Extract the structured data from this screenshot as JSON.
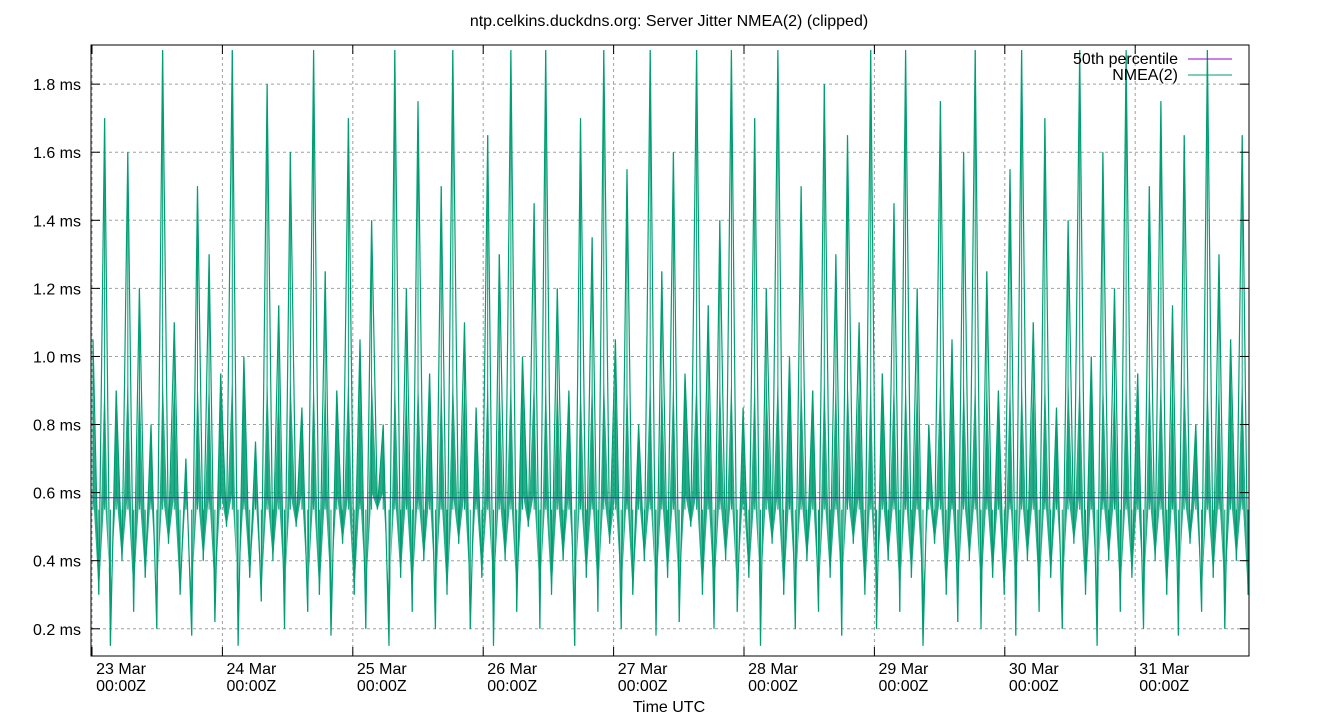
{
  "chart_data": {
    "type": "line",
    "title": "ntp.celkins.duckdns.org: Server Jitter NMEA(2) (clipped)",
    "xlabel": "Time UTC",
    "ylabel": "",
    "x_range": [
      "23 Mar 00:00Z",
      "31 Mar 21:00Z"
    ],
    "ylim": [
      0.12,
      1.915
    ],
    "grid": true,
    "legend_position": "top-right",
    "x_ticks": [
      {
        "line1": "23 Mar",
        "line2": "00:00Z"
      },
      {
        "line1": "24 Mar",
        "line2": "00:00Z"
      },
      {
        "line1": "25 Mar",
        "line2": "00:00Z"
      },
      {
        "line1": "26 Mar",
        "line2": "00:00Z"
      },
      {
        "line1": "27 Mar",
        "line2": "00:00Z"
      },
      {
        "line1": "28 Mar",
        "line2": "00:00Z"
      },
      {
        "line1": "29 Mar",
        "line2": "00:00Z"
      },
      {
        "line1": "30 Mar",
        "line2": "00:00Z"
      },
      {
        "line1": "31 Mar",
        "line2": "00:00Z"
      }
    ],
    "y_ticks": [
      {
        "value": 0.2,
        "label": "0.2 ms"
      },
      {
        "value": 0.4,
        "label": "0.4 ms"
      },
      {
        "value": 0.6,
        "label": "0.6 ms"
      },
      {
        "value": 0.8,
        "label": "0.8 ms"
      },
      {
        "value": 1.0,
        "label": "1.0 ms"
      },
      {
        "value": 1.2,
        "label": "1.2 ms"
      },
      {
        "value": 1.4,
        "label": "1.4 ms"
      },
      {
        "value": 1.6,
        "label": "1.6 ms"
      },
      {
        "value": 1.8,
        "label": "1.8 ms"
      }
    ],
    "series": [
      {
        "name": "50th percentile",
        "color": "#9400d3",
        "values": [
          0.585
        ]
      },
      {
        "name": "NMEA(2)",
        "color": "#009e73",
        "values": [
          1.05,
          0.3,
          1.7,
          0.15,
          0.9,
          0.4,
          1.6,
          0.25,
          1.2,
          0.35,
          0.8,
          0.2,
          1.9,
          0.45,
          1.1,
          0.3,
          0.7,
          0.18,
          1.5,
          0.4,
          1.3,
          0.22,
          0.95,
          0.5,
          1.9,
          0.15,
          1.0,
          0.35,
          0.75,
          0.28,
          1.8,
          0.4,
          1.15,
          0.2,
          1.6,
          0.5,
          0.85,
          0.25,
          1.9,
          0.3,
          1.25,
          0.18,
          0.9,
          0.45,
          1.7,
          0.3,
          1.05,
          0.2,
          1.4,
          0.55,
          0.8,
          0.15,
          1.9,
          0.35,
          1.2,
          0.25,
          1.75,
          0.4,
          0.95,
          0.2,
          1.5,
          0.3,
          1.9,
          0.45,
          1.1,
          0.2,
          0.85,
          0.35,
          1.65,
          0.15,
          1.3,
          0.4,
          1.9,
          0.25,
          1.0,
          0.5,
          1.45,
          0.2,
          1.9,
          0.3,
          1.2,
          0.4,
          0.9,
          0.15,
          1.7,
          0.35,
          1.35,
          0.25,
          1.9,
          0.45,
          1.05,
          0.2,
          1.55,
          0.3,
          0.8,
          0.4,
          1.9,
          0.18,
          1.25,
          0.35,
          1.6,
          0.22,
          0.95,
          0.5,
          1.9,
          0.3,
          1.15,
          0.2,
          1.4,
          0.4,
          1.9,
          0.25,
          0.85,
          0.35,
          1.7,
          0.15,
          1.2,
          0.45,
          1.9,
          0.3,
          1.0,
          0.2,
          1.5,
          0.4,
          0.9,
          0.25,
          1.8,
          0.35,
          1.3,
          0.18,
          1.65,
          0.45,
          1.1,
          0.3,
          1.9,
          0.2,
          0.95,
          0.4,
          1.45,
          0.25,
          1.9,
          0.35,
          1.2,
          0.15,
          0.8,
          0.45,
          1.75,
          0.3,
          1.05,
          0.22,
          1.6,
          0.4,
          1.9,
          0.2,
          1.25,
          0.35,
          0.9,
          0.3,
          1.55,
          0.18,
          1.9,
          0.4,
          1.1,
          0.25,
          1.7,
          0.35,
          0.85,
          0.2,
          1.4,
          0.45,
          1.9,
          0.3,
          1.0,
          0.15,
          1.6,
          0.4,
          1.2,
          0.25,
          1.9,
          0.35,
          0.95,
          0.2,
          1.5,
          0.4,
          1.75,
          0.3,
          1.15,
          0.18,
          1.65,
          0.45,
          0.8,
          0.25,
          1.9,
          0.35,
          1.3,
          0.2,
          1.05,
          0.4,
          1.65,
          0.3
        ]
      }
    ]
  }
}
